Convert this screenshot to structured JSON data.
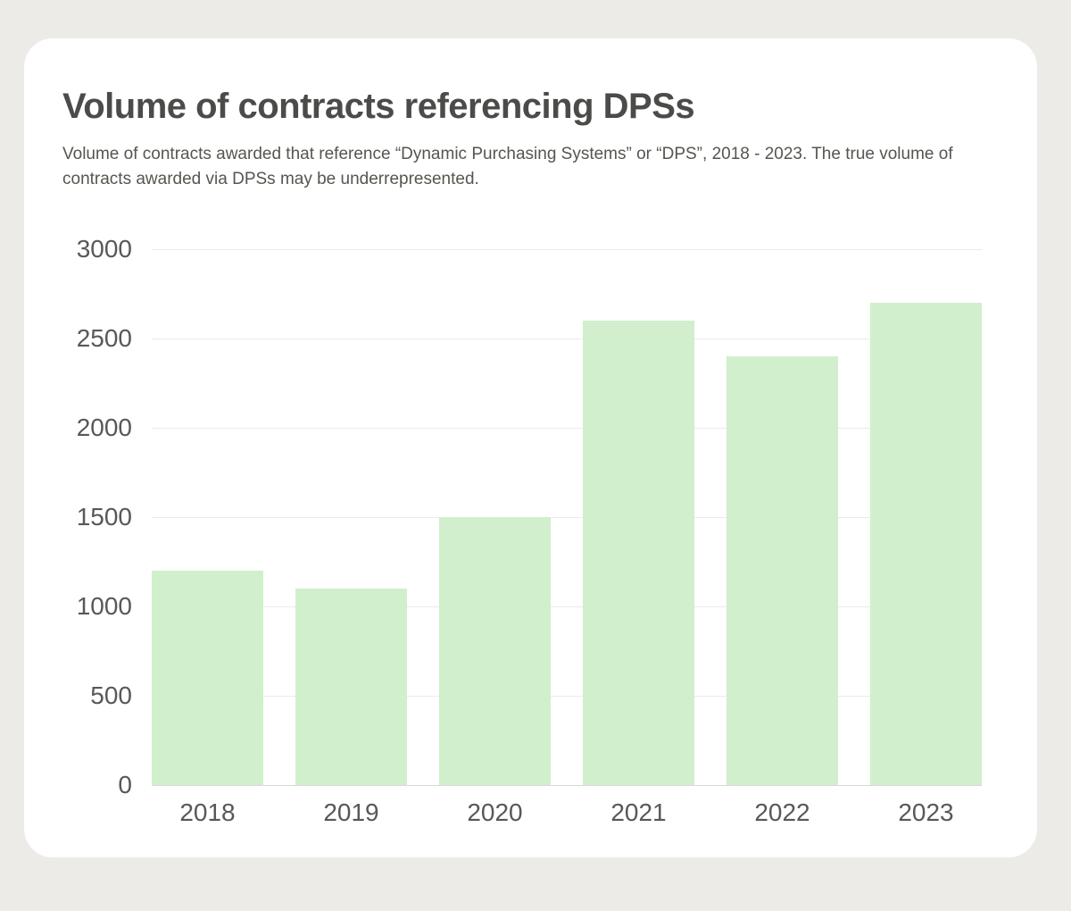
{
  "header": {
    "title": "Volume of contracts referencing DPSs",
    "subtitle": "Volume of contracts awarded that reference “Dynamic Purchasing Systems” or “DPS”, 2018 - 2023. The true volume of contracts awarded via DPSs may be underrepresented."
  },
  "chart_data": {
    "type": "bar",
    "categories": [
      "2018",
      "2019",
      "2020",
      "2021",
      "2022",
      "2023"
    ],
    "values": [
      1200,
      1100,
      1500,
      2600,
      2400,
      2700
    ],
    "title": "Volume of contracts referencing DPSs",
    "xlabel": "",
    "ylabel": "",
    "ylim": [
      0,
      3000
    ],
    "yticks": [
      0,
      500,
      1000,
      1500,
      2000,
      2500,
      3000
    ],
    "grid": true,
    "legend": "none",
    "bar_color": "#d1efcc",
    "gridline_color": "#ebebeb",
    "baseline_color": "#d9d9d9",
    "tick_label_color": "#57585a"
  }
}
